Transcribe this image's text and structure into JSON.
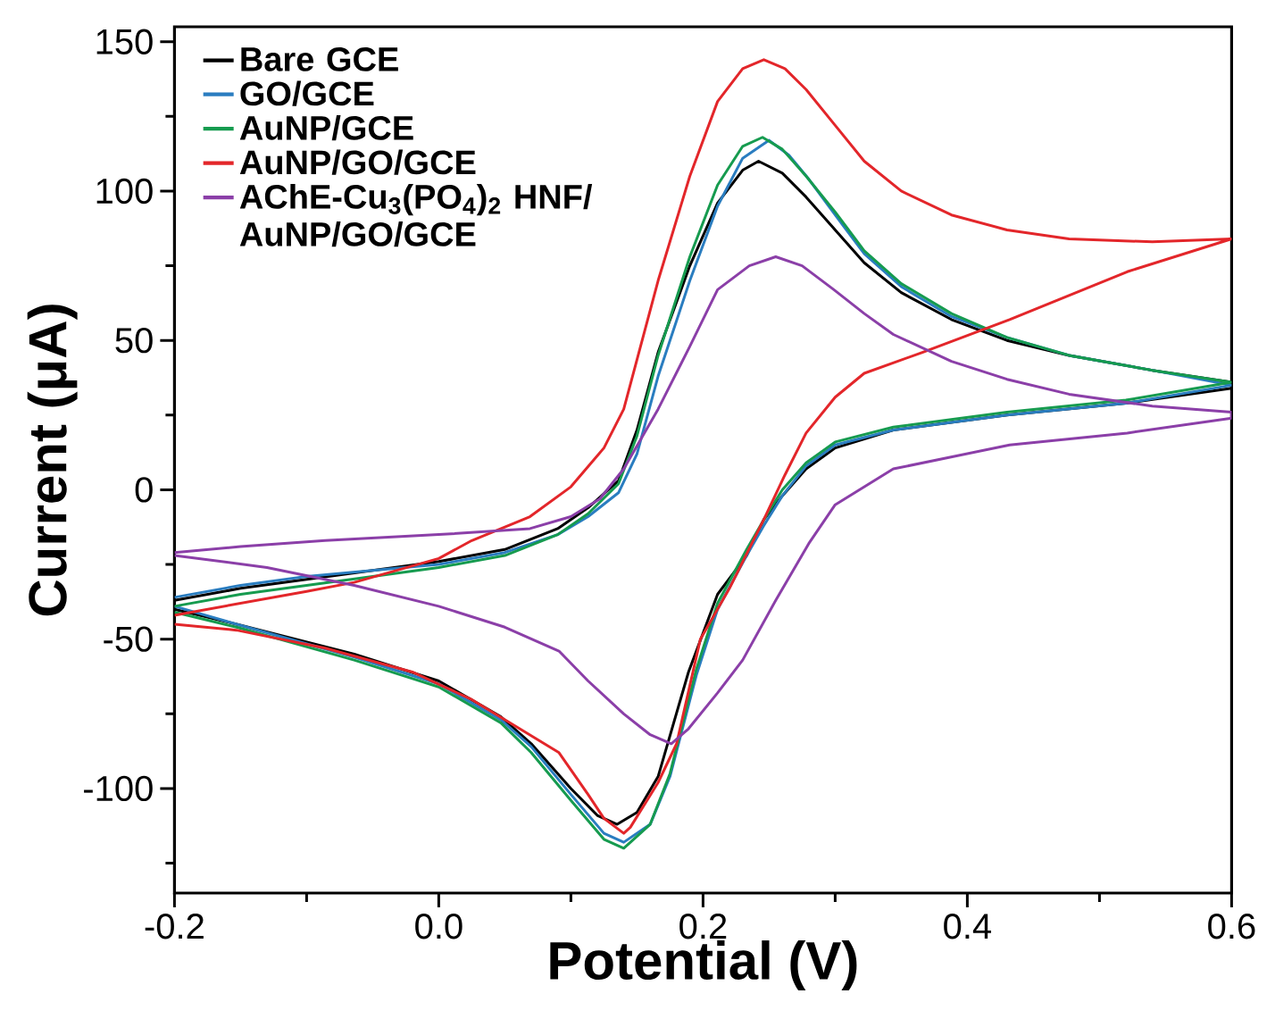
{
  "chart_data": {
    "type": "line",
    "xlabel": "Potential (V)",
    "ylabel": "Current (μA)",
    "xlim": [
      -0.2,
      0.6
    ],
    "ylim": [
      -135,
      155
    ],
    "xticks": [
      -0.2,
      {
        "value": -0.1,
        "label": null
      },
      {
        "value": 0,
        "label": "0.0"
      },
      {
        "value": 0.1,
        "label": null
      },
      0.2,
      {
        "value": 0.3,
        "label": null
      },
      0.4,
      {
        "value": 0.5,
        "label": null
      },
      0.6
    ],
    "yticks": [
      {
        "value": -125,
        "label": null
      },
      -100,
      {
        "value": -75,
        "label": null
      },
      -50,
      {
        "value": -25,
        "label": null
      },
      0,
      {
        "value": 25,
        "label": null
      },
      50,
      {
        "value": 75,
        "label": null
      },
      100,
      {
        "value": 125,
        "label": null
      },
      150
    ],
    "legend": "top left",
    "series": [
      {
        "name": "Bare GCE",
        "color": "#000000",
        "x": [
          -0.2,
          -0.15,
          -0.1,
          -0.05,
          0.0,
          0.05,
          0.09,
          0.113,
          0.136,
          0.15,
          0.166,
          0.19,
          0.211,
          0.23,
          0.242,
          0.26,
          0.278,
          0.3,
          0.322,
          0.35,
          0.388,
          0.43,
          0.477,
          0.54,
          0.6,
          0.6,
          0.52,
          0.43,
          0.344,
          0.3,
          0.278,
          0.26,
          0.246,
          0.233,
          0.211,
          0.189,
          0.166,
          0.15,
          0.135,
          0.12,
          0.1,
          0.07,
          0.047,
          0.0,
          -0.064,
          -0.153,
          -0.2
        ],
        "values": [
          -37,
          -33,
          -30,
          -27,
          -24,
          -20,
          -13,
          -6,
          3,
          20,
          46,
          75,
          96,
          107,
          110,
          106,
          98,
          87,
          76,
          66,
          57,
          50,
          45,
          40,
          36,
          34,
          29,
          25,
          20,
          14,
          7,
          -2,
          -10,
          -22,
          -35,
          -61,
          -96,
          -108,
          -112,
          -109,
          -100,
          -85,
          -76,
          -64,
          -55,
          -45,
          -40
        ]
      },
      {
        "name": "GO/GCE",
        "color": "#2a7dc0",
        "x": [
          -0.2,
          -0.15,
          -0.1,
          -0.05,
          0.0,
          0.05,
          0.09,
          0.113,
          0.136,
          0.15,
          0.166,
          0.19,
          0.211,
          0.23,
          0.25,
          0.265,
          0.28,
          0.3,
          0.322,
          0.35,
          0.388,
          0.43,
          0.477,
          0.54,
          0.6,
          0.6,
          0.52,
          0.43,
          0.344,
          0.3,
          0.278,
          0.26,
          0.246,
          0.233,
          0.211,
          0.195,
          0.175,
          0.16,
          0.14,
          0.125,
          0.1,
          0.07,
          0.047,
          0.0,
          -0.064,
          -0.153,
          -0.2
        ],
        "values": [
          -36,
          -32,
          -29,
          -27,
          -25,
          -21,
          -15,
          -9,
          -1,
          12,
          38,
          70,
          95,
          111,
          117,
          112,
          104,
          92,
          79,
          68,
          58,
          51,
          45,
          40,
          35,
          35,
          29,
          25,
          20,
          15,
          8,
          -2,
          -12,
          -22,
          -40,
          -62,
          -96,
          -112,
          -118,
          -115,
          -102,
          -86,
          -77,
          -65,
          -56,
          -45,
          -39
        ]
      },
      {
        "name": "AuNP/GCE",
        "color": "#169b4f",
        "x": [
          -0.2,
          -0.15,
          -0.1,
          -0.05,
          0.0,
          0.05,
          0.09,
          0.113,
          0.136,
          0.15,
          0.166,
          0.19,
          0.211,
          0.23,
          0.245,
          0.26,
          0.278,
          0.3,
          0.322,
          0.35,
          0.388,
          0.43,
          0.477,
          0.54,
          0.6,
          0.6,
          0.52,
          0.43,
          0.344,
          0.3,
          0.278,
          0.26,
          0.246,
          0.233,
          0.211,
          0.195,
          0.175,
          0.16,
          0.14,
          0.125,
          0.1,
          0.07,
          0.047,
          0.0,
          -0.064,
          -0.153,
          -0.2
        ],
        "values": [
          -39,
          -35,
          -32,
          -29,
          -26,
          -22,
          -15,
          -8,
          2,
          18,
          45,
          78,
          102,
          115,
          118,
          114,
          105,
          93,
          80,
          69,
          59,
          51,
          45,
          40,
          36,
          36,
          30,
          26,
          21,
          16,
          9,
          0,
          -10,
          -20,
          -38,
          -60,
          -95,
          -112,
          -120,
          -117,
          -104,
          -88,
          -78,
          -66,
          -57,
          -46,
          -41
        ]
      },
      {
        "name": "AuNP/GO/GCE",
        "color": "#e3262a",
        "x": [
          -0.2,
          -0.15,
          -0.1,
          -0.064,
          0.0,
          0.025,
          0.069,
          0.1,
          0.125,
          0.14,
          0.166,
          0.19,
          0.211,
          0.23,
          0.246,
          0.262,
          0.278,
          0.3,
          0.322,
          0.35,
          0.388,
          0.43,
          0.477,
          0.54,
          0.6,
          0.6,
          0.521,
          0.432,
          0.366,
          0.322,
          0.3,
          0.278,
          0.262,
          0.247,
          0.22,
          0.198,
          0.18,
          0.166,
          0.145,
          0.14,
          0.125,
          0.113,
          0.091,
          0.024,
          -0.02,
          -0.086,
          -0.153,
          -0.2
        ],
        "values": [
          -42,
          -38,
          -34,
          -31,
          -23,
          -17,
          -9,
          1,
          14,
          27,
          70,
          105,
          130,
          141,
          144,
          141,
          134,
          122,
          110,
          100,
          92,
          87,
          84,
          83,
          84,
          84,
          73,
          57,
          46,
          39,
          31,
          19,
          5,
          -9,
          -33,
          -50,
          -85,
          -98,
          -113,
          -115,
          -110,
          -102,
          -88,
          -70,
          -61,
          -53,
          -47,
          -45
        ]
      },
      {
        "name": "AChE-Cu$_{3}$(PO$_{4}$)$_{2}$ HNF/AuNP/GO/GCE",
        "color": "#8b3fa8",
        "x": [
          -0.2,
          -0.15,
          -0.086,
          0.0,
          0.069,
          0.1,
          0.122,
          0.14,
          0.166,
          0.19,
          0.211,
          0.235,
          0.255,
          0.275,
          0.299,
          0.322,
          0.344,
          0.388,
          0.43,
          0.477,
          0.54,
          0.6,
          0.6,
          0.521,
          0.432,
          0.344,
          0.3,
          0.28,
          0.255,
          0.23,
          0.211,
          0.189,
          0.176,
          0.16,
          0.14,
          0.113,
          0.091,
          0.05,
          0.0,
          -0.064,
          -0.13,
          -0.2
        ],
        "values": [
          -21,
          -19,
          -17,
          -15,
          -13,
          -9,
          -3,
          7,
          27,
          48,
          67,
          75,
          78,
          75,
          67,
          59,
          52,
          43,
          37,
          32,
          28,
          26,
          24,
          19,
          15,
          7,
          -5,
          -18,
          -37,
          -57,
          -68,
          -80,
          -85,
          -82,
          -75,
          -64,
          -54,
          -46,
          -39,
          -32,
          -26,
          -22
        ]
      }
    ]
  }
}
